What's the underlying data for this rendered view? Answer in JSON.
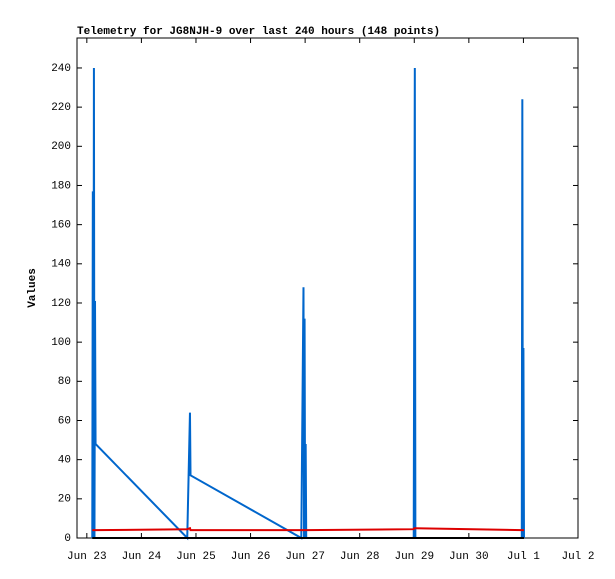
{
  "chart_data": {
    "type": "line",
    "title": "Telemetry for JG8NJH-9 over last 240 hours (148 points)",
    "y_label": "Values",
    "x": [
      23.1,
      23.11,
      23.12,
      23.13,
      23.14,
      23.15,
      23.16,
      24.84,
      24.89,
      24.9,
      26.93,
      26.97,
      26.98,
      26.99,
      27.0,
      27.01,
      27.02,
      28.99,
      29.0,
      29.01,
      29.02,
      30.97,
      30.98,
      30.99,
      31.0,
      31.01
    ],
    "series": [
      {
        "color": "#0066cc",
        "values": [
          0,
          177,
          0,
          240,
          0,
          121,
          48,
          0,
          64,
          32,
          0,
          128,
          0,
          112,
          0,
          48,
          0,
          0,
          128,
          240,
          0,
          0,
          224,
          0,
          97,
          0
        ]
      },
      {
        "color": "#dd0000",
        "values": [
          4,
          4,
          4,
          4,
          4,
          4,
          4,
          4.5,
          5,
          4,
          4,
          4,
          4,
          4,
          4,
          4,
          4,
          4.5,
          5,
          5,
          5,
          4,
          4,
          4,
          4,
          4
        ]
      },
      {
        "color": "#000000",
        "values": [
          0,
          0,
          0,
          0,
          0,
          0,
          0,
          0,
          0,
          0,
          0,
          0,
          0,
          0,
          0,
          0,
          0,
          0,
          0,
          0,
          0,
          0,
          0,
          0,
          0,
          0
        ]
      }
    ],
    "xlim": [
      22.82,
      32
    ],
    "xticks": [
      {
        "value": 23,
        "label": "Jun 23"
      },
      {
        "value": 24,
        "label": "Jun 24"
      },
      {
        "value": 25,
        "label": "Jun 25"
      },
      {
        "value": 26,
        "label": "Jun 26"
      },
      {
        "value": 27,
        "label": "Jun 27"
      },
      {
        "value": 28,
        "label": "Jun 28"
      },
      {
        "value": 29,
        "label": "Jun 29"
      },
      {
        "value": 30,
        "label": "Jun 30"
      },
      {
        "value": 31,
        "label": "Jul 1"
      },
      {
        "value": 32,
        "label": "Jul 2"
      }
    ],
    "ylim": [
      0,
      255.3
    ],
    "yticks": [
      0,
      20,
      40,
      60,
      80,
      100,
      120,
      140,
      160,
      180,
      200,
      220,
      240
    ],
    "grid": false
  }
}
